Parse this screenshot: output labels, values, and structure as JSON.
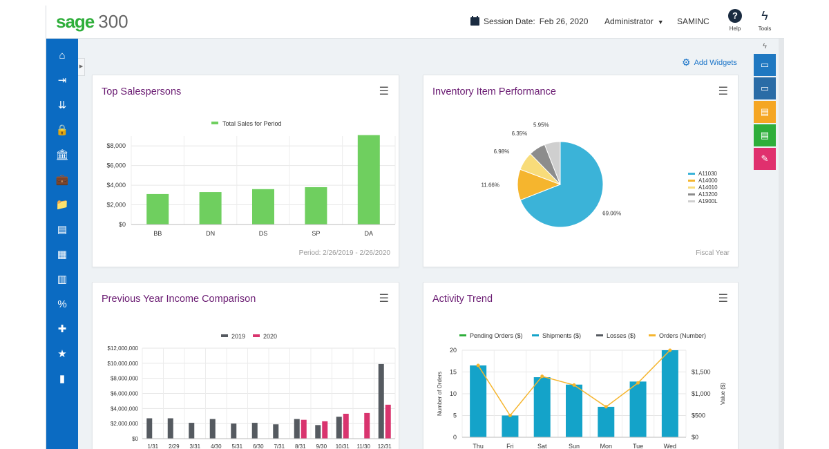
{
  "header": {
    "logo_brand": "sage",
    "logo_version": "300",
    "session_label": "Session Date:",
    "session_date": "Feb 26, 2020",
    "user": "Administrator",
    "company": "SAMINC",
    "help_label": "Help",
    "tools_label": "Tools"
  },
  "sidebar": {
    "items": [
      {
        "icon": "home-icon",
        "glyph": "⌂"
      },
      {
        "icon": "export-icon",
        "glyph": "⇥"
      },
      {
        "icon": "import-icon",
        "glyph": "⇊"
      },
      {
        "icon": "lock-icon",
        "glyph": "🔒"
      },
      {
        "icon": "bank-icon",
        "glyph": "🏛"
      },
      {
        "icon": "briefcase-icon",
        "glyph": "💼"
      },
      {
        "icon": "folder-icon",
        "glyph": "📁"
      },
      {
        "icon": "inventory-icon",
        "glyph": "▤"
      },
      {
        "icon": "document-icon",
        "glyph": "▦"
      },
      {
        "icon": "ledger-icon",
        "glyph": "▥"
      },
      {
        "icon": "percent-icon",
        "glyph": "%"
      },
      {
        "icon": "settings-puzzle-icon",
        "glyph": "✚"
      },
      {
        "icon": "star-icon",
        "glyph": "★"
      },
      {
        "icon": "bar-chart-icon",
        "glyph": "▮"
      }
    ]
  },
  "rightbar": {
    "buttons": [
      {
        "name": "screen-settings-icon",
        "color": "#1f78c1",
        "glyph": "▭"
      },
      {
        "name": "screen-clock-icon",
        "color": "#2a6ca6",
        "glyph": "▭"
      },
      {
        "name": "report-orange-icon",
        "color": "#f5a623",
        "glyph": "▤"
      },
      {
        "name": "report-green-icon",
        "color": "#2eae3a",
        "glyph": "▤"
      },
      {
        "name": "pen-icon",
        "color": "#e0306e",
        "glyph": "✎"
      }
    ]
  },
  "add_widgets_label": "Add Widgets",
  "colors": {
    "accent_green": "#6fcf5f",
    "pie_blue": "#3bb3d8",
    "bar_gray": "#555a60",
    "bar_pink": "#d9346e",
    "trend_blue": "#14a3c9",
    "title_purple": "#6a1b72",
    "nav_blue": "#0b6bc2"
  },
  "widgets": {
    "top_salespersons": {
      "title": "Top Salespersons",
      "legend": "Total Sales for Period",
      "footer": "Period: 2/26/2019 - 2/26/2020"
    },
    "inventory": {
      "title": "Inventory Item Performance",
      "footer": "Fiscal Year"
    },
    "income": {
      "title": "Previous Year Income Comparison"
    },
    "activity": {
      "title": "Activity Trend"
    }
  },
  "chart_data": [
    {
      "type": "bar",
      "title": "Top Salespersons",
      "categories": [
        "BB",
        "DN",
        "DS",
        "SP",
        "DA"
      ],
      "series": [
        {
          "name": "Total Sales for Period",
          "values": [
            3100,
            3300,
            3600,
            3800,
            9100
          ]
        }
      ],
      "ylim": [
        0,
        9000
      ],
      "yticks": [
        "$0",
        "$2,000",
        "$4,000",
        "$6,000",
        "$8,000"
      ],
      "ytick_values": [
        0,
        2000,
        4000,
        6000,
        8000
      ],
      "grid": true,
      "legend_position": "top"
    },
    {
      "type": "pie",
      "title": "Inventory Item Performance",
      "labels": [
        "A11030",
        "A14000",
        "A14010",
        "A13200",
        "A1900L"
      ],
      "values": [
        69.06,
        11.66,
        6.98,
        6.35,
        5.95
      ],
      "value_labels": [
        "69.06%",
        "11.66%",
        "6.98%",
        "6.35%",
        "5.95%"
      ],
      "colors": [
        "#3bb3d8",
        "#f5b52e",
        "#f8dc7a",
        "#8c8c8c",
        "#cfcfcf"
      ],
      "legend_position": "right"
    },
    {
      "type": "bar",
      "title": "Previous Year Income Comparison",
      "categories": [
        "1/31",
        "2/29",
        "3/31",
        "4/30",
        "5/31",
        "6/30",
        "7/31",
        "8/31",
        "9/30",
        "10/31",
        "11/30",
        "12/31"
      ],
      "series": [
        {
          "name": "2019",
          "values": [
            2700000,
            2700000,
            2100000,
            2600000,
            2000000,
            2100000,
            1900000,
            2600000,
            1800000,
            2900000,
            0,
            9900000
          ]
        },
        {
          "name": "2020",
          "values": [
            0,
            0,
            0,
            0,
            0,
            0,
            0,
            2500000,
            2300000,
            3300000,
            3400000,
            4500000
          ]
        }
      ],
      "ylim": [
        0,
        12000000
      ],
      "yticks": [
        "$0",
        "$2,000,000",
        "$4,000,000",
        "$6,000,000",
        "$8,000,000",
        "$10,000,000",
        "$12,000,000"
      ],
      "ytick_values": [
        0,
        2000000,
        4000000,
        6000000,
        8000000,
        10000000,
        12000000
      ],
      "colors": [
        "#555a60",
        "#d9346e"
      ],
      "grid": true,
      "legend_position": "top"
    },
    {
      "type": "bar",
      "title": "Activity Trend",
      "categories": [
        "Thu",
        "Fri",
        "Sat",
        "Sun",
        "Mon",
        "Tue",
        "Wed"
      ],
      "legend": [
        {
          "name": "Pending Orders ($)",
          "color": "#2eae3a"
        },
        {
          "name": "Shipments ($)",
          "color": "#14a3c9"
        },
        {
          "name": "Losses ($)",
          "color": "#555a60"
        },
        {
          "name": "Orders (Number)",
          "color": "#f5b52e"
        }
      ],
      "series": [
        {
          "name": "Shipments ($)",
          "axis": "right",
          "values": [
            1650,
            500,
            1380,
            1210,
            700,
            1280,
            2000
          ]
        },
        {
          "name": "Orders (Number)",
          "axis": "left",
          "values": [
            16.5,
            5,
            14,
            12,
            7,
            12.5,
            20
          ]
        }
      ],
      "ylabel": "Number of Orders",
      "y2label": "Value ($)",
      "ylim": [
        0,
        20
      ],
      "yticks": [
        "0",
        "5",
        "10",
        "15",
        "20"
      ],
      "ytick_values": [
        0,
        5,
        10,
        15,
        20
      ],
      "y2lim": [
        0,
        2000
      ],
      "y2ticks": [
        "$0",
        "$500",
        "$1,000",
        "$1,500"
      ],
      "y2tick_values": [
        0,
        500,
        1000,
        1500
      ],
      "grid": true,
      "legend_position": "top"
    }
  ]
}
